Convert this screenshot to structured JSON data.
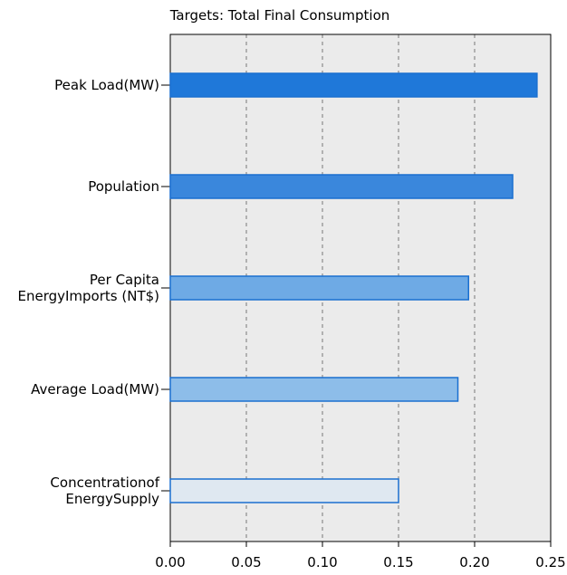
{
  "chart_data": {
    "type": "barh",
    "title": "Targets: Total Final Consumption",
    "categories": [
      "Peak Load(MW)",
      "Population",
      "Per Capita\nEnergyImports (NT$)",
      "Average Load(MW)",
      "Concentrationof\nEnergySupply"
    ],
    "values": [
      0.241,
      0.225,
      0.196,
      0.189,
      0.15
    ],
    "colors": [
      "#1f78d9",
      "#3a87dc",
      "#6eaae5",
      "#8dbde9",
      "#dfe8f1"
    ],
    "edge_color": "#1a6fd0",
    "xlim": [
      0,
      0.25
    ],
    "xticks": [
      {
        "value": 0,
        "label": "0.00"
      },
      {
        "value": 0.05,
        "label": "0.05"
      },
      {
        "value": 0.1,
        "label": "0.10"
      },
      {
        "value": 0.15,
        "label": "0.15"
      },
      {
        "value": 0.2,
        "label": "0.20"
      },
      {
        "value": 0.25,
        "label": "0.25"
      }
    ],
    "grid": true
  }
}
